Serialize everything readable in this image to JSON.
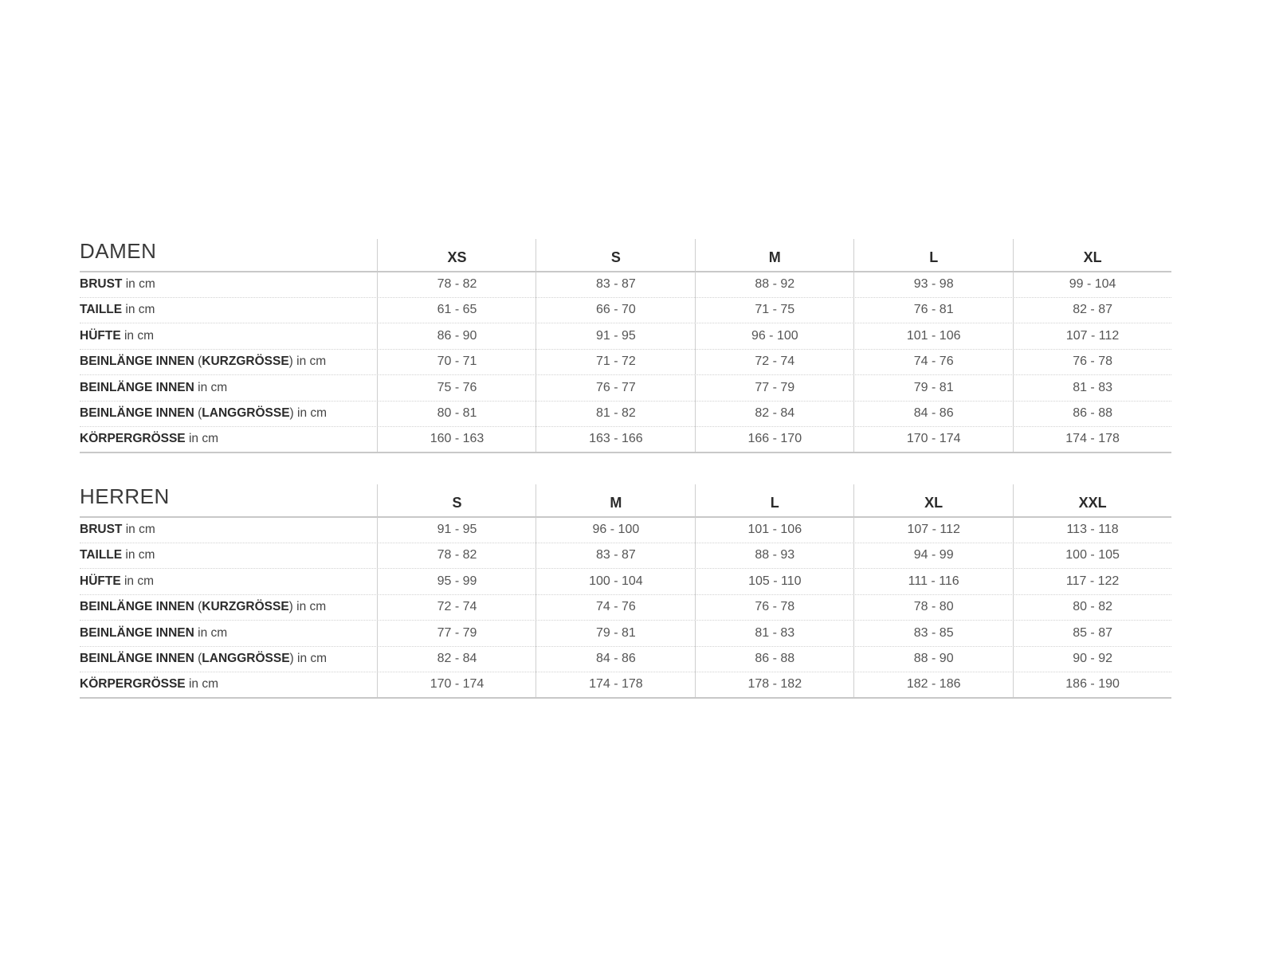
{
  "tables": [
    {
      "title": "DAMEN",
      "sizes": [
        "XS",
        "S",
        "M",
        "L",
        "XL"
      ],
      "rows": [
        {
          "label": [
            {
              "t": "BRUST",
              "b": true
            },
            {
              "t": " in cm",
              "b": false
            }
          ],
          "values": [
            "78 - 82",
            "83 - 87",
            "88 - 92",
            "93 - 98",
            "99 - 104"
          ]
        },
        {
          "label": [
            {
              "t": "TAILLE",
              "b": true
            },
            {
              "t": " in cm",
              "b": false
            }
          ],
          "values": [
            "61 - 65",
            "66 - 70",
            "71 - 75",
            "76 - 81",
            "82 - 87"
          ]
        },
        {
          "label": [
            {
              "t": "HÜFTE",
              "b": true
            },
            {
              "t": " in cm",
              "b": false
            }
          ],
          "values": [
            "86 - 90",
            "91 - 95",
            "96 - 100",
            "101 - 106",
            "107 - 112"
          ]
        },
        {
          "label": [
            {
              "t": "BEINLÄNGE INNEN",
              "b": true
            },
            {
              "t": " (",
              "b": false
            },
            {
              "t": "KURZGRÖSSE",
              "b": true
            },
            {
              "t": ") in cm",
              "b": false
            }
          ],
          "values": [
            "70 - 71",
            "71 - 72",
            "72 - 74",
            "74 - 76",
            "76 - 78"
          ]
        },
        {
          "label": [
            {
              "t": "BEINLÄNGE INNEN",
              "b": true
            },
            {
              "t": " in cm",
              "b": false
            }
          ],
          "values": [
            "75 - 76",
            "76 - 77",
            "77 - 79",
            "79 - 81",
            "81 - 83"
          ]
        },
        {
          "label": [
            {
              "t": "BEINLÄNGE INNEN",
              "b": true
            },
            {
              "t": " (",
              "b": false
            },
            {
              "t": "LANGGRÖSSE",
              "b": true
            },
            {
              "t": ") in cm",
              "b": false
            }
          ],
          "values": [
            "80 - 81",
            "81 - 82",
            "82 - 84",
            "84 - 86",
            "86 - 88"
          ]
        },
        {
          "label": [
            {
              "t": "KÖRPERGRÖSSE",
              "b": true
            },
            {
              "t": " in cm",
              "b": false
            }
          ],
          "values": [
            "160 - 163",
            "163 - 166",
            "166 - 170",
            "170 - 174",
            "174 - 178"
          ]
        }
      ]
    },
    {
      "title": "HERREN",
      "sizes": [
        "S",
        "M",
        "L",
        "XL",
        "XXL"
      ],
      "rows": [
        {
          "label": [
            {
              "t": "BRUST",
              "b": true
            },
            {
              "t": " in cm",
              "b": false
            }
          ],
          "values": [
            "91 - 95",
            "96 - 100",
            "101 - 106",
            "107 - 112",
            "113 - 118"
          ]
        },
        {
          "label": [
            {
              "t": "TAILLE",
              "b": true
            },
            {
              "t": " in cm",
              "b": false
            }
          ],
          "values": [
            "78 - 82",
            "83 - 87",
            "88 - 93",
            "94 - 99",
            "100 - 105"
          ]
        },
        {
          "label": [
            {
              "t": "HÜFTE",
              "b": true
            },
            {
              "t": " in cm",
              "b": false
            }
          ],
          "values": [
            "95 - 99",
            "100 - 104",
            "105 - 110",
            "111 - 116",
            "117 - 122"
          ]
        },
        {
          "label": [
            {
              "t": "BEINLÄNGE INNEN",
              "b": true
            },
            {
              "t": " (",
              "b": false
            },
            {
              "t": "KURZGRÖSSE",
              "b": true
            },
            {
              "t": ") in cm",
              "b": false
            }
          ],
          "values": [
            "72 - 74",
            "74 - 76",
            "76 - 78",
            "78 - 80",
            "80 - 82"
          ]
        },
        {
          "label": [
            {
              "t": "BEINLÄNGE INNEN",
              "b": true
            },
            {
              "t": " in cm",
              "b": false
            }
          ],
          "values": [
            "77 - 79",
            "79 - 81",
            "81 - 83",
            "83 - 85",
            "85 - 87"
          ]
        },
        {
          "label": [
            {
              "t": "BEINLÄNGE INNEN",
              "b": true
            },
            {
              "t": " (",
              "b": false
            },
            {
              "t": "LANGGRÖSSE",
              "b": true
            },
            {
              "t": ") in cm",
              "b": false
            }
          ],
          "values": [
            "82 - 84",
            "84 - 86",
            "86 - 88",
            "88 - 90",
            "90 - 92"
          ]
        },
        {
          "label": [
            {
              "t": "KÖRPERGRÖSSE",
              "b": true
            },
            {
              "t": " in cm",
              "b": false
            }
          ],
          "values": [
            "170 - 174",
            "174 - 178",
            "178 - 182",
            "182 - 186",
            "186 - 190"
          ]
        }
      ]
    }
  ]
}
